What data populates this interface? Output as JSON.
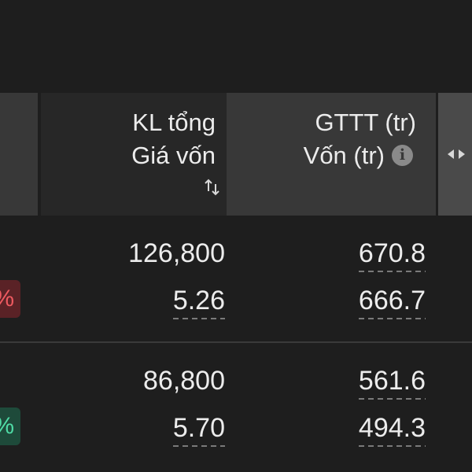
{
  "header": {
    "kl_line1": "KL tổng",
    "kl_line2": "Giá vốn",
    "gttt_line1": "GTTT (tr)",
    "gttt_line2": "Vốn (tr)",
    "info_icon": "i",
    "sort_icon": "sort-updown-icon",
    "toggle_icon": "left-right-arrows-icon"
  },
  "rows": [
    {
      "kl_tong": "126,800",
      "gia_von": "5.26",
      "gttt": "670.8",
      "von": "666.7",
      "badge": "%",
      "badge_color": "#ee5a60"
    },
    {
      "kl_tong": "86,800",
      "gia_von": "5.70",
      "gttt": "561.6",
      "von": "494.3",
      "badge": "%",
      "badge_color": "#4fdca6"
    }
  ],
  "colors": {
    "background": "#1e1e1e",
    "header_bg": "#383838",
    "negative": "#ee5a60",
    "positive": "#4fdca6"
  }
}
